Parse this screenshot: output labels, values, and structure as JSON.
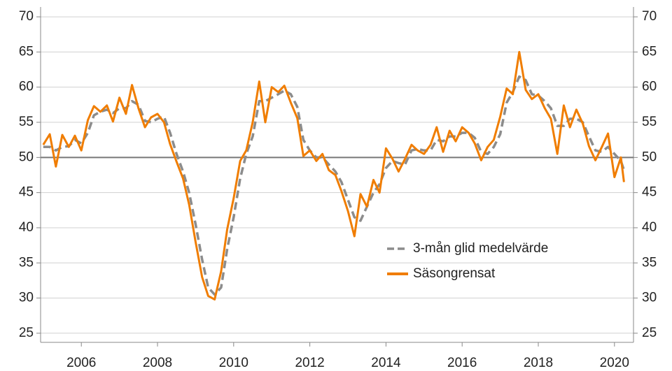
{
  "chart_data": {
    "type": "line",
    "x": [
      2005,
      2005.17,
      2005.33,
      2005.5,
      2005.67,
      2005.83,
      2006,
      2006.17,
      2006.33,
      2006.5,
      2006.67,
      2006.83,
      2007,
      2007.17,
      2007.33,
      2007.5,
      2007.67,
      2007.83,
      2008,
      2008.17,
      2008.33,
      2008.5,
      2008.67,
      2008.83,
      2009,
      2009.17,
      2009.33,
      2009.5,
      2009.67,
      2009.83,
      2010,
      2010.17,
      2010.33,
      2010.5,
      2010.67,
      2010.83,
      2011,
      2011.17,
      2011.33,
      2011.5,
      2011.67,
      2011.83,
      2012,
      2012.17,
      2012.33,
      2012.5,
      2012.67,
      2012.83,
      2013,
      2013.17,
      2013.33,
      2013.5,
      2013.67,
      2013.83,
      2014,
      2014.17,
      2014.33,
      2014.5,
      2014.67,
      2014.83,
      2015,
      2015.17,
      2015.33,
      2015.5,
      2015.67,
      2015.83,
      2016,
      2016.17,
      2016.33,
      2016.5,
      2016.67,
      2016.83,
      2017,
      2017.17,
      2017.33,
      2017.5,
      2017.67,
      2017.83,
      2018,
      2018.17,
      2018.33,
      2018.5,
      2018.67,
      2018.83,
      2019,
      2019.17,
      2019.33,
      2019.5,
      2019.67,
      2019.83,
      2020,
      2020.17,
      2020.25
    ],
    "series": [
      {
        "name": "3-mån glid medelvärde",
        "color": "#8c8c8c",
        "dashed": true,
        "values": [
          51.5,
          51.5,
          51.0,
          51.5,
          51.6,
          52.5,
          52.0,
          53.5,
          56.0,
          56.5,
          56.8,
          56.3,
          57.0,
          57.0,
          58.0,
          57.5,
          55.2,
          55.0,
          55.5,
          55.8,
          53.5,
          50.5,
          48.0,
          45.0,
          40.5,
          35.5,
          31.5,
          30.5,
          31.5,
          37.0,
          41.5,
          47.0,
          50.5,
          53.0,
          58.0,
          58.0,
          58.5,
          59.0,
          59.5,
          59.0,
          57.2,
          52.5,
          51.0,
          50.0,
          50.0,
          49.0,
          48.0,
          46.5,
          44.0,
          41.5,
          41.0,
          43.0,
          45.0,
          46.2,
          48.5,
          49.5,
          49.2,
          49.0,
          51.0,
          51.2,
          51.0,
          51.0,
          52.5,
          52.3,
          53.0,
          53.0,
          53.5,
          53.5,
          52.8,
          50.8,
          50.5,
          51.5,
          53.3,
          57.8,
          59.3,
          61.5,
          61.0,
          59.0,
          58.8,
          58.0,
          57.0,
          54.5,
          54.5,
          55.5,
          55.5,
          55.0,
          53.0,
          51.0,
          50.8,
          51.5,
          50.5,
          49.5,
          48.2
        ]
      },
      {
        "name": "Säsongrensat",
        "color": "#f07d00",
        "dashed": false,
        "values": [
          51.8,
          53.3,
          48.7,
          53.2,
          51.5,
          53.1,
          51.0,
          55.3,
          57.3,
          56.5,
          57.4,
          55.1,
          58.5,
          56.2,
          60.3,
          57.0,
          54.3,
          55.7,
          56.2,
          55.0,
          51.9,
          49.4,
          47.0,
          43.3,
          38.0,
          33.0,
          30.3,
          29.8,
          33.8,
          39.8,
          44.2,
          49.5,
          51.0,
          55.0,
          60.8,
          55.0,
          60.0,
          59.3,
          60.2,
          57.8,
          55.6,
          50.2,
          51.0,
          49.5,
          50.5,
          48.2,
          47.5,
          45.2,
          42.4,
          38.8,
          44.8,
          43.0,
          46.8,
          45.0,
          51.3,
          49.8,
          48.0,
          49.8,
          51.8,
          51.0,
          50.5,
          51.8,
          54.3,
          50.8,
          53.8,
          52.3,
          54.3,
          53.5,
          52.0,
          49.6,
          51.5,
          52.5,
          55.8,
          59.8,
          59.0,
          65.0,
          59.6,
          58.3,
          59.0,
          57.0,
          55.5,
          50.5,
          57.4,
          54.3,
          56.8,
          54.8,
          51.6,
          49.6,
          51.5,
          53.4,
          47.2,
          50.0,
          46.5
        ]
      }
    ],
    "xlim": [
      2004.93,
      2020.5
    ],
    "xticks": [
      2006,
      2008,
      2010,
      2012,
      2014,
      2016,
      2018,
      2020
    ],
    "ylim": [
      23.7,
      71.4
    ],
    "yticks": [
      25,
      30,
      35,
      40,
      45,
      50,
      55,
      60,
      65,
      70
    ],
    "hline": 50,
    "grid": true
  }
}
